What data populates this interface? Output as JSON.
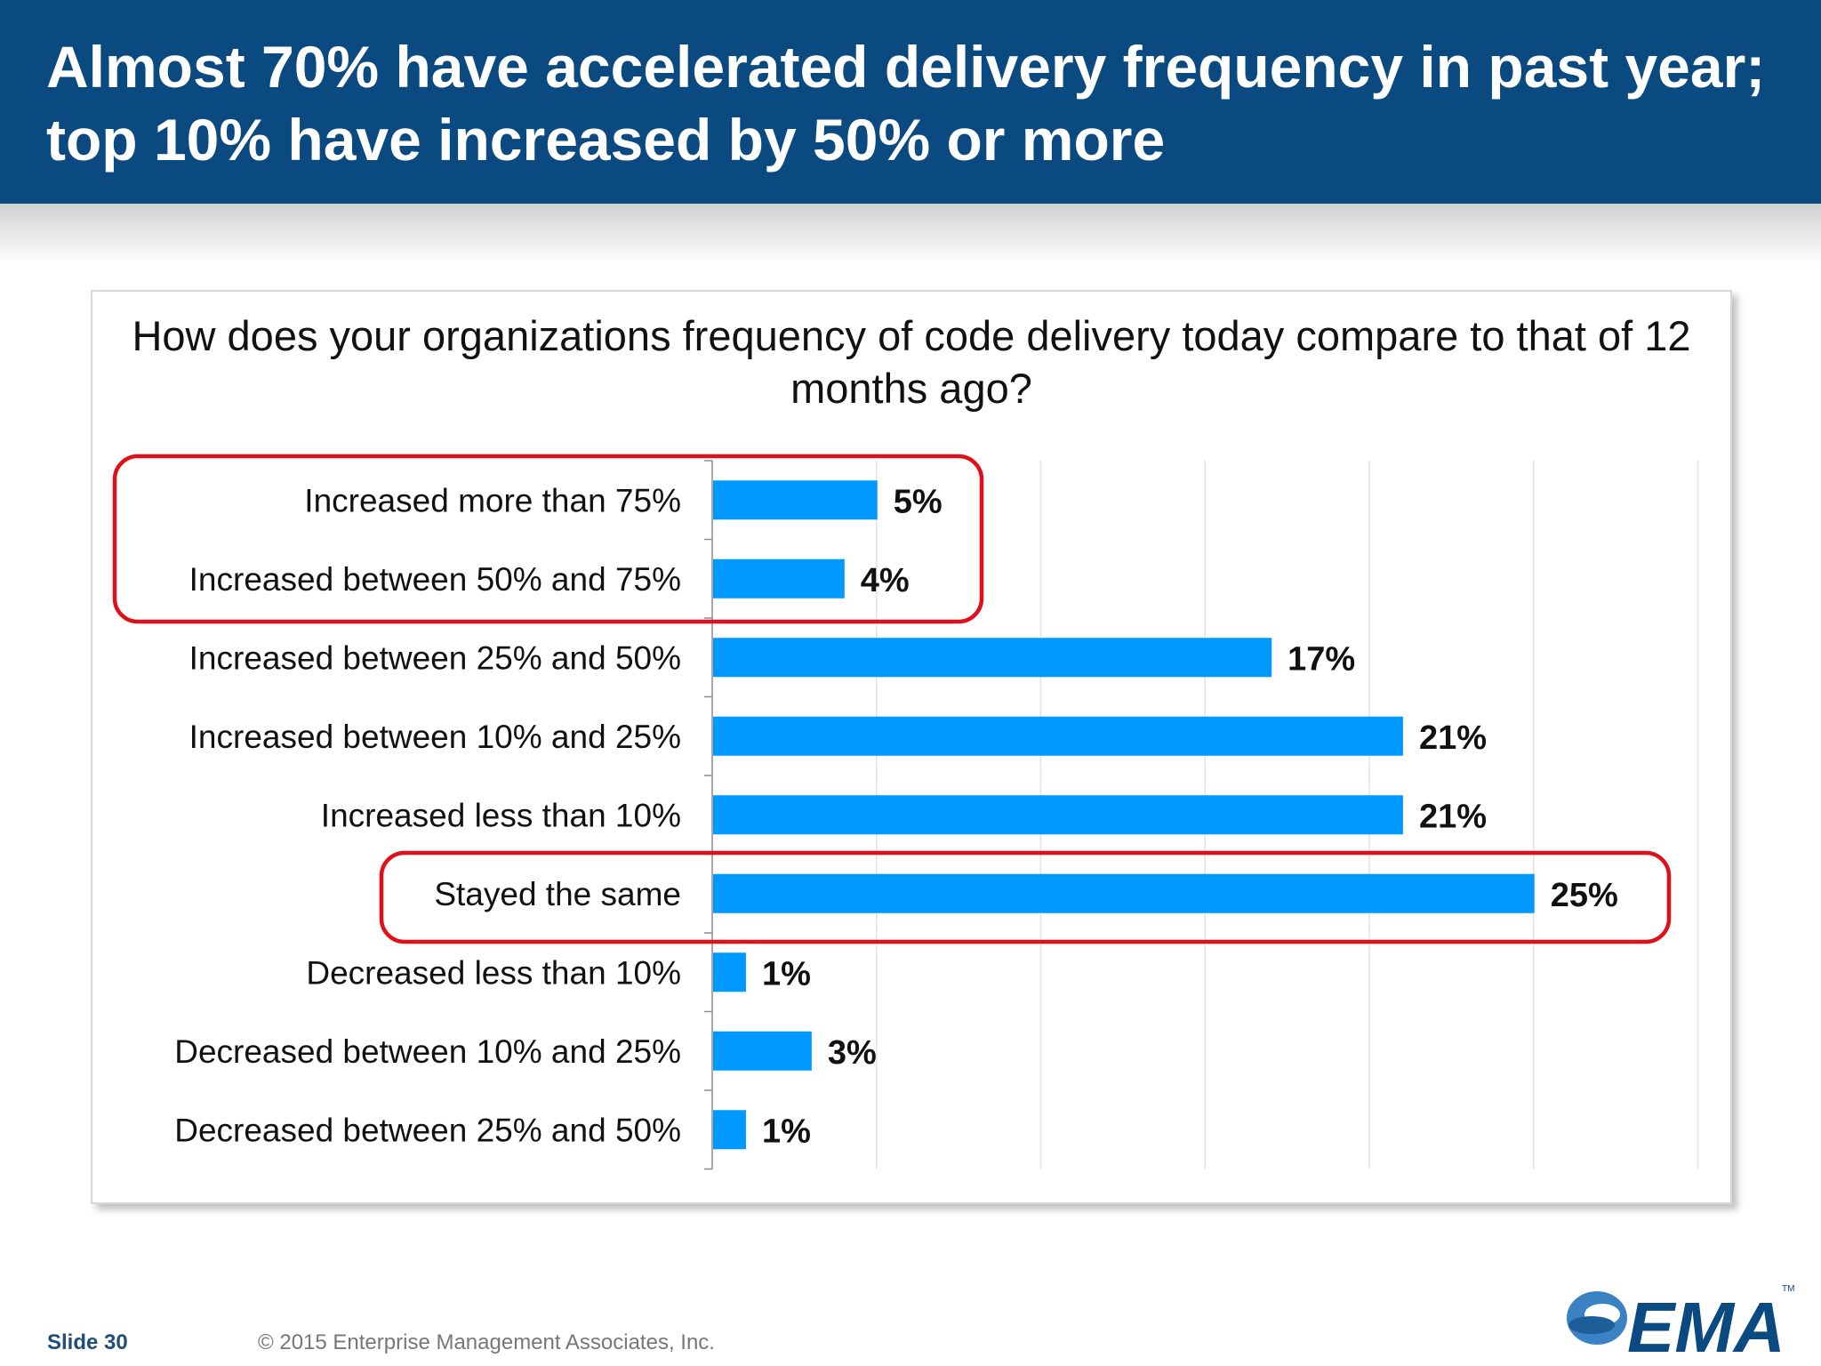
{
  "slide": {
    "title": "Almost 70% have accelerated delivery frequency in past year; top 10% have increased by 50% or more",
    "number_label": "Slide 30",
    "copyright": "© 2015 Enterprise Management Associates, Inc.",
    "logo_text": "EMA",
    "logo_tm": "TM"
  },
  "colors": {
    "header": "#0b4a80",
    "bar": "#0099ff",
    "highlight": "#e0101a"
  },
  "chart_data": {
    "type": "bar",
    "orientation": "horizontal",
    "title": "How does your organizations frequency of code delivery today compare to that of 12 months ago?",
    "categories": [
      "Increased more than 75%",
      "Increased between 50% and 75%",
      "Increased between 25% and 50%",
      "Increased between 10% and 25%",
      "Increased less than 10%",
      "Stayed the same",
      "Decreased less than 10%",
      "Decreased between 10% and 25%",
      "Decreased between 25% and 50%"
    ],
    "values": [
      5,
      4,
      17,
      21,
      21,
      25,
      1,
      3,
      1
    ],
    "data_labels": [
      "5%",
      "4%",
      "17%",
      "21%",
      "21%",
      "25%",
      "1%",
      "3%",
      "1%"
    ],
    "xlim": [
      0,
      30
    ],
    "grid": true,
    "gridline_step": 5,
    "highlighted_groups": [
      [
        "Increased more than 75%",
        "Increased between 50% and 75%"
      ],
      [
        "Stayed the same"
      ]
    ]
  }
}
